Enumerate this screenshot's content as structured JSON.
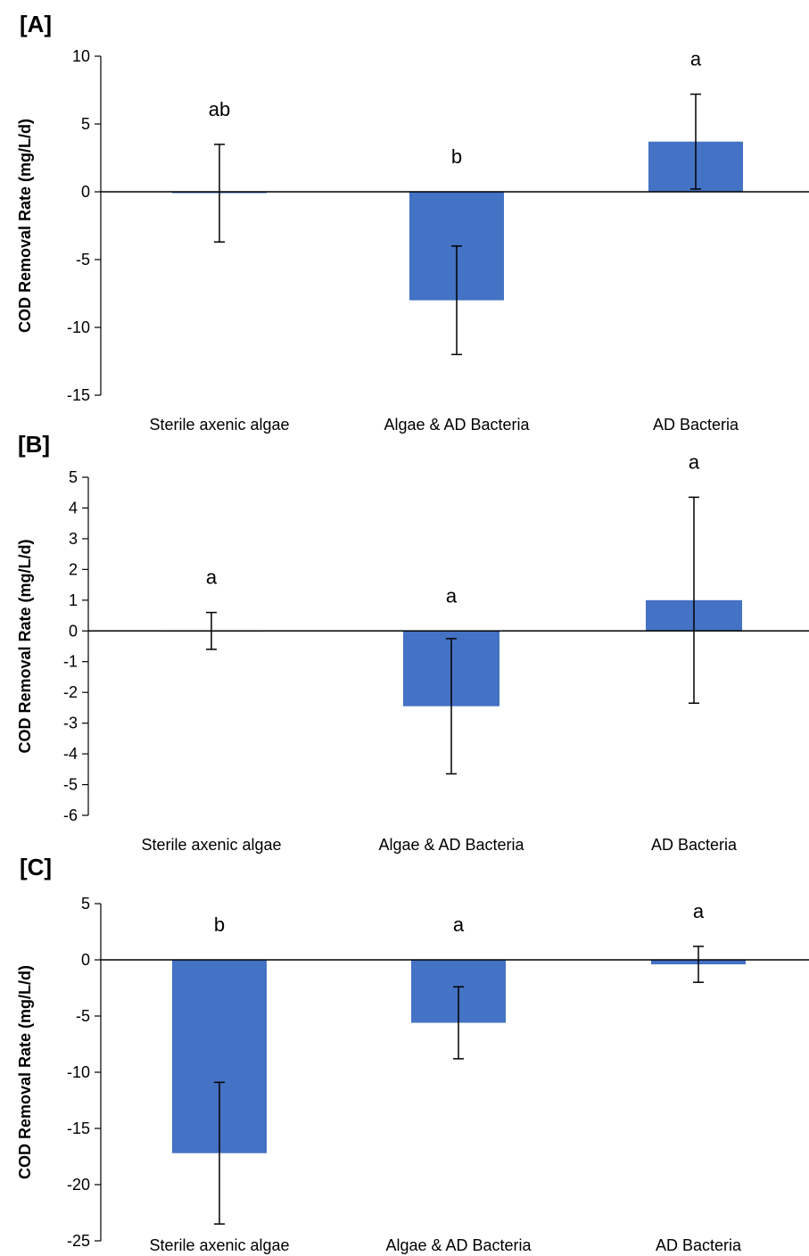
{
  "colors": {
    "bar": "#4472C4",
    "axis": "#000000",
    "text": "#000000"
  },
  "chart_data": [
    {
      "type": "bar",
      "panel_label": "[A]",
      "categories": [
        "Sterile axenic algae",
        "Algae & AD Bacteria",
        "AD Bacteria"
      ],
      "values": [
        -0.1,
        -8.0,
        3.7
      ],
      "error": [
        3.6,
        4.0,
        3.5
      ],
      "significance": [
        "ab",
        "b",
        "a"
      ],
      "ylabel": "COD Removal Rate (mg/L/d)",
      "ylim": [
        -15,
        10
      ],
      "yticks": [
        10,
        5,
        0,
        -5,
        -10,
        -15
      ],
      "grid": false
    },
    {
      "type": "bar",
      "panel_label": "[B]",
      "categories": [
        "Sterile axenic algae",
        "Algae & AD Bacteria",
        "AD Bacteria"
      ],
      "values": [
        0.0,
        -2.45,
        1.0
      ],
      "error": [
        0.6,
        2.2,
        3.35
      ],
      "significance": [
        "a",
        "a",
        "a"
      ],
      "ylabel": "COD Removal Rate (mg/L/d)",
      "ylim": [
        -6,
        5
      ],
      "yticks": [
        5,
        4,
        3,
        2,
        1,
        0,
        -1,
        -2,
        -3,
        -4,
        -5,
        -6
      ],
      "grid": false
    },
    {
      "type": "bar",
      "panel_label": "[C]",
      "categories": [
        "Sterile axenic algae",
        "Algae & AD Bacteria",
        "AD Bacteria"
      ],
      "values": [
        -17.2,
        -5.6,
        -0.4
      ],
      "error": [
        6.3,
        3.2,
        1.6
      ],
      "significance": [
        "b",
        "a",
        "a"
      ],
      "ylabel": "COD Removal Rate (mg/L/d)",
      "ylim": [
        -25,
        5
      ],
      "yticks": [
        5,
        0,
        -5,
        -10,
        -15,
        -20,
        -25
      ],
      "grid": false
    }
  ]
}
